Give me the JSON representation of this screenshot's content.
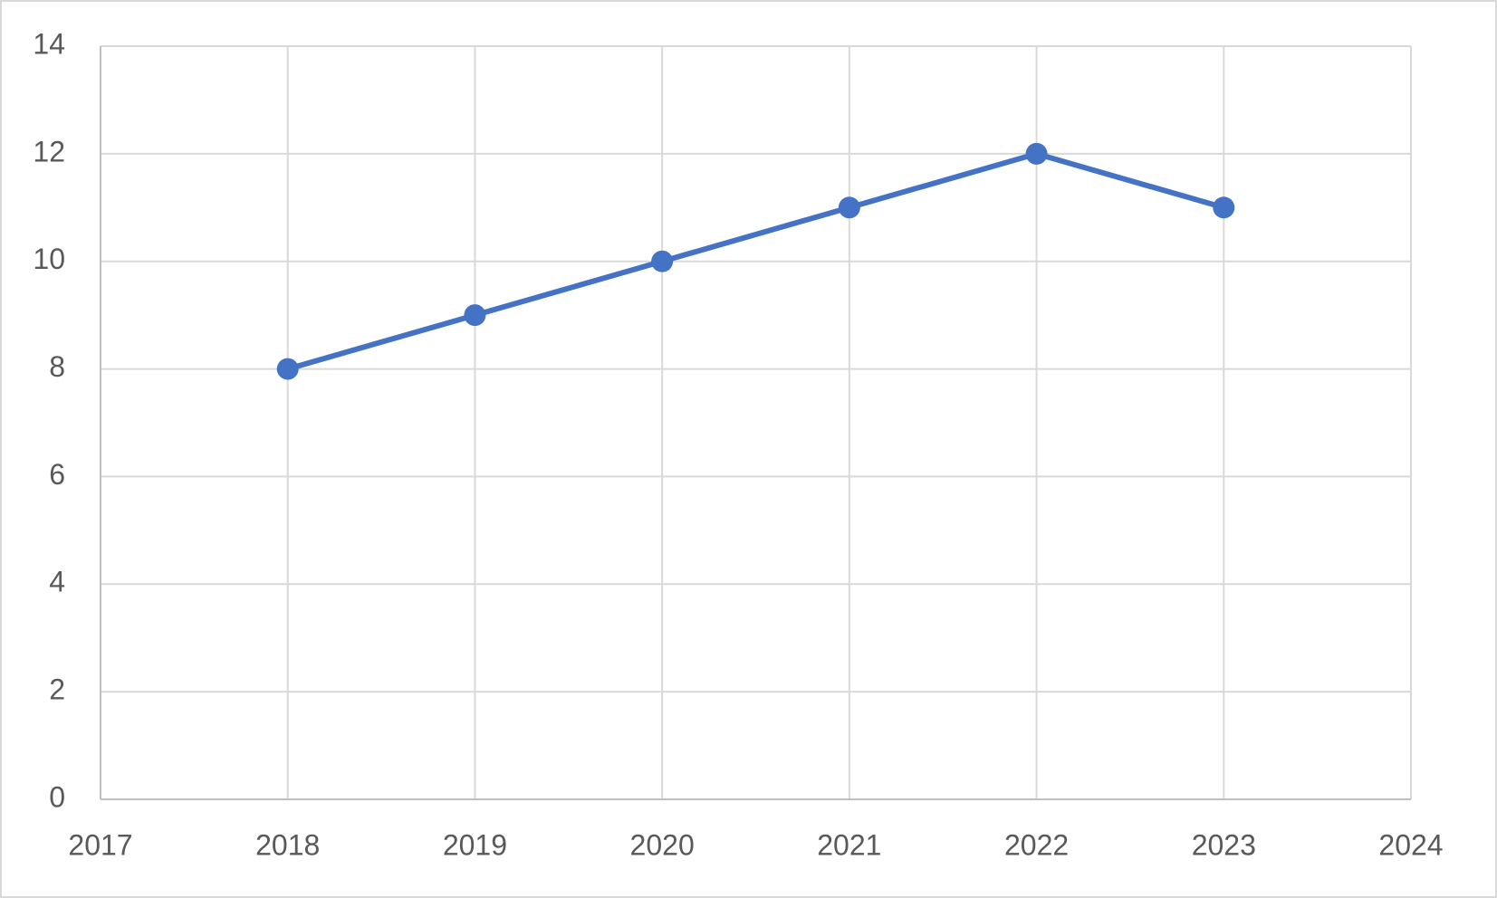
{
  "chart_data": {
    "type": "line",
    "x": [
      2018,
      2019,
      2020,
      2021,
      2022,
      2023
    ],
    "series": [
      {
        "color": "#4472c4",
        "values": [
          8,
          9,
          10,
          11,
          12,
          11
        ]
      }
    ],
    "xlim": [
      2017,
      2024
    ],
    "xticks": [
      2017,
      2018,
      2019,
      2020,
      2021,
      2022,
      2023,
      2024
    ],
    "ylim": [
      0,
      14
    ],
    "yticks": [
      0,
      2,
      4,
      6,
      8,
      10,
      12,
      14
    ],
    "grid": true
  }
}
